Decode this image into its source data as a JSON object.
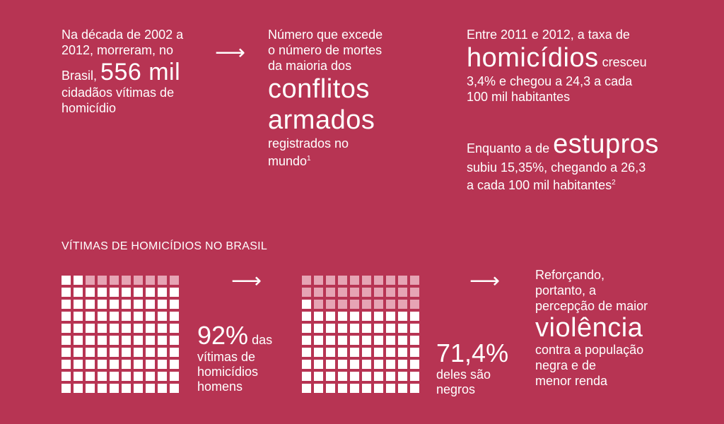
{
  "col1": {
    "line1": "Na década de 2002 a",
    "line2": "2012, morreram, no",
    "line3_pre": "Brasil,",
    "line3_big": "556 mil",
    "line4": "cidadãos vítimas de",
    "line5": "homicídio"
  },
  "col2": {
    "line1": "Número que excede",
    "line2": "o número de mortes",
    "line3": "da maioria dos",
    "big1": "conflitos",
    "big2": "armados",
    "line4": "registrados no",
    "line5": "mundo",
    "sup": "1"
  },
  "col3": {
    "line1": "Entre 2011 e 2012, a taxa de",
    "big": "homicídios",
    "after_big": "cresceu",
    "line2": "3,4%  e chegou a 24,3 a cada",
    "line3": "100 mil habitantes",
    "line4_pre": "Enquanto a de",
    "line4_big": "estupros",
    "line5": "subiu 15,35%, chegando a 26,3",
    "line6": "a cada 100 mil habitantes",
    "sup": "2"
  },
  "section_heading": "VÍTIMAS DE HOMICÍDIOS NO BRASIL",
  "stat1": {
    "pct": "92%",
    "rest1": "das",
    "rest2": "vítimas de",
    "rest3": "homicídios",
    "rest4": "homens",
    "value_percent": 92
  },
  "stat2": {
    "pct": "71,4%",
    "rest1": "deles são",
    "rest2": "negros",
    "value_percent": 71.4
  },
  "conclusion": {
    "line1": "Reforçando,",
    "line2": "portanto, a",
    "line3": "percepção de maior",
    "big": "violência",
    "line4": "contra a população",
    "line5": "negra e de",
    "line6": "menor renda"
  },
  "arrow_glyph": "⟶",
  "colors": {
    "background": "#B73453",
    "cell_on": "#FFFFFF",
    "cell_off": "#E6A4B4"
  }
}
